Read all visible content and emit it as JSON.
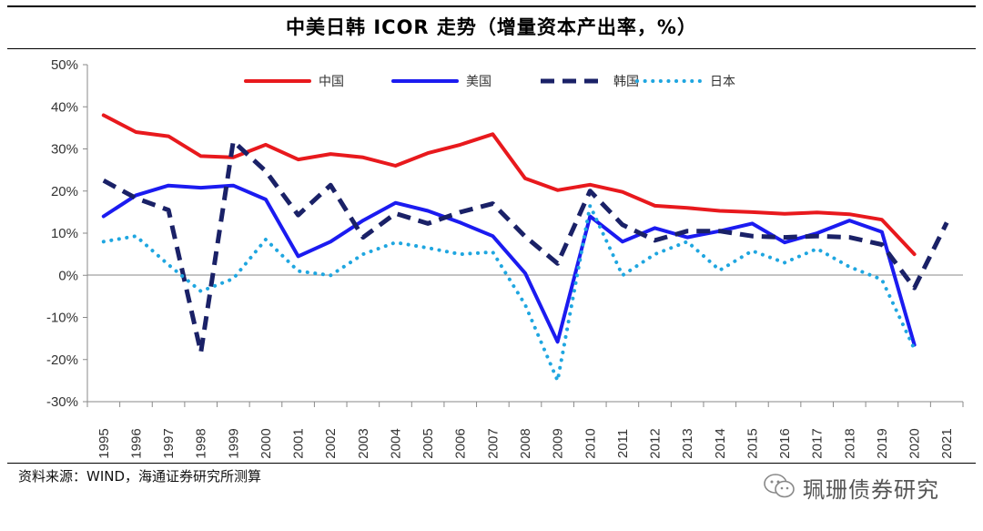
{
  "chart_data": {
    "type": "line",
    "title": "中美日韩 ICOR 走势（增量资本产出率，%）",
    "xlabel": "",
    "ylabel": "",
    "ylim": [
      -0.3,
      0.5
    ],
    "yticks": [
      0.5,
      0.4,
      0.3,
      0.2,
      0.1,
      0.0,
      -0.1,
      -0.2,
      -0.3
    ],
    "ytick_labels": [
      "50%",
      "40%",
      "30%",
      "20%",
      "10%",
      "0%",
      "-10%",
      "-20%",
      "-30%"
    ],
    "categories": [
      "1995",
      "1996",
      "1997",
      "1998",
      "1999",
      "2000",
      "2001",
      "2002",
      "2003",
      "2004",
      "2005",
      "2006",
      "2007",
      "2008",
      "2009",
      "2010",
      "2011",
      "2012",
      "2013",
      "2014",
      "2015",
      "2016",
      "2017",
      "2018",
      "2019",
      "2020",
      "2021"
    ],
    "grid": false,
    "legend_position": "top",
    "series": [
      {
        "name": "中国",
        "color": "#e8191d",
        "style": "solid",
        "values": [
          0.38,
          0.34,
          0.33,
          0.283,
          0.28,
          0.31,
          0.275,
          0.288,
          0.28,
          0.26,
          0.29,
          0.31,
          0.335,
          0.23,
          0.202,
          0.215,
          0.198,
          0.165,
          0.16,
          0.153,
          0.15,
          0.146,
          0.149,
          0.145,
          0.132,
          0.05,
          null
        ]
      },
      {
        "name": "美国",
        "color": "#1b1bf0",
        "style": "solid",
        "values": [
          0.14,
          0.19,
          0.213,
          0.208,
          0.213,
          0.18,
          0.045,
          0.08,
          0.13,
          0.172,
          0.153,
          0.125,
          0.093,
          0.005,
          -0.158,
          0.14,
          0.08,
          0.112,
          0.09,
          0.105,
          0.123,
          0.078,
          0.1,
          0.13,
          0.103,
          -0.165,
          null
        ]
      },
      {
        "name": "韩国",
        "color": "#1a2167",
        "style": "dashed",
        "values": [
          0.225,
          0.183,
          0.155,
          -0.183,
          0.318,
          0.247,
          0.143,
          0.214,
          0.09,
          0.147,
          0.123,
          0.15,
          0.17,
          0.092,
          0.028,
          0.2,
          0.12,
          0.083,
          0.105,
          0.105,
          0.093,
          0.09,
          0.093,
          0.09,
          0.073,
          -0.03,
          0.125
        ]
      },
      {
        "name": "日本",
        "color": "#1fa6e0",
        "style": "dotted",
        "values": [
          0.08,
          0.093,
          0.025,
          -0.038,
          -0.008,
          0.085,
          0.01,
          0.0,
          0.05,
          0.078,
          0.065,
          0.05,
          0.055,
          -0.07,
          -0.25,
          0.165,
          0.0,
          0.05,
          0.08,
          0.012,
          0.058,
          0.03,
          0.063,
          0.02,
          -0.01,
          -0.175,
          null
        ]
      }
    ]
  },
  "footer": {
    "source": "资料来源：WIND，海通证券研究所测算",
    "watermark": "珮珊债券研究",
    "watermark_icon": "wechat-icon"
  }
}
